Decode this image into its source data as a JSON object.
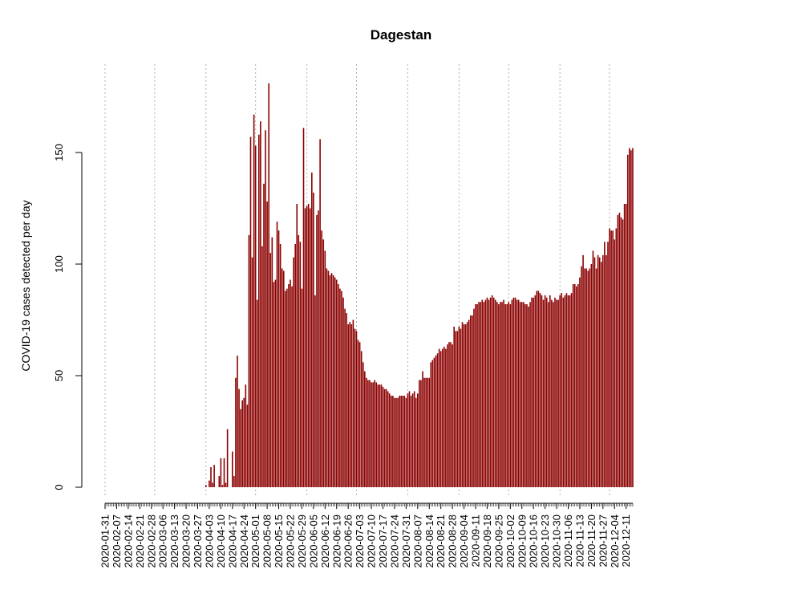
{
  "chart_data": {
    "type": "bar",
    "title": "Dagestan",
    "xlabel": "",
    "ylabel": "COVID-19 cases detected per day",
    "ylim": [
      0,
      180
    ],
    "y_ticks": [
      0,
      50,
      100,
      150
    ],
    "x_start": "2020-01-31",
    "x_tick_labels": [
      "2020-01-31",
      "2020-02-07",
      "2020-02-14",
      "2020-02-21",
      "2020-02-28",
      "2020-03-06",
      "2020-03-13",
      "2020-03-20",
      "2020-03-27",
      "2020-04-03",
      "2020-04-10",
      "2020-04-17",
      "2020-04-24",
      "2020-05-01",
      "2020-05-08",
      "2020-05-15",
      "2020-05-22",
      "2020-05-29",
      "2020-06-05",
      "2020-06-12",
      "2020-06-19",
      "2020-06-26",
      "2020-07-03",
      "2020-07-10",
      "2020-07-17",
      "2020-07-24",
      "2020-07-31",
      "2020-08-07",
      "2020-08-14",
      "2020-08-21",
      "2020-08-28",
      "2020-09-04",
      "2020-09-11",
      "2020-09-18",
      "2020-09-25",
      "2020-10-02",
      "2020-10-09",
      "2020-10-16",
      "2020-10-23",
      "2020-10-30",
      "2020-11-06",
      "2020-11-13",
      "2020-11-20",
      "2020-11-27",
      "2020-12-04",
      "2020-12-11"
    ],
    "gridlines": [
      "2020-01-31",
      "2020-03-01",
      "2020-04-01",
      "2020-05-01",
      "2020-06-01",
      "2020-07-01",
      "2020-08-01",
      "2020-09-01",
      "2020-10-01",
      "2020-11-01",
      "2020-12-01"
    ],
    "grid": "vertical dotted at month starts",
    "bar_color": "#8b0000",
    "values": [
      0,
      0,
      0,
      0,
      0,
      0,
      0,
      0,
      0,
      0,
      0,
      0,
      0,
      0,
      0,
      0,
      0,
      0,
      0,
      0,
      0,
      0,
      0,
      0,
      0,
      0,
      0,
      0,
      0,
      0,
      0,
      0,
      0,
      0,
      0,
      0,
      0,
      0,
      0,
      0,
      0,
      0,
      0,
      0,
      0,
      0,
      0,
      0,
      0,
      0,
      0,
      0,
      0,
      0,
      0,
      0,
      0,
      0,
      0,
      0,
      0,
      1,
      0,
      3,
      9,
      2,
      10,
      0,
      0,
      5,
      13,
      1,
      13,
      2,
      26,
      0,
      0,
      16,
      5,
      49,
      59,
      44,
      35,
      39,
      40,
      46,
      37,
      113,
      157,
      103,
      167,
      153,
      84,
      158,
      164,
      108,
      136,
      160,
      128,
      181,
      105,
      112,
      92,
      93,
      119,
      115,
      109,
      98,
      97,
      88,
      89,
      91,
      93,
      90,
      103,
      109,
      127,
      113,
      110,
      89,
      161,
      125,
      126,
      127,
      125,
      141,
      132,
      86,
      122,
      124,
      156,
      115,
      111,
      106,
      98,
      97,
      95,
      96,
      95,
      94,
      93,
      91,
      89,
      88,
      85,
      80,
      78,
      73,
      74,
      73,
      75,
      71,
      70,
      66,
      65,
      61,
      56,
      52,
      49,
      48,
      48,
      47,
      47,
      48,
      47,
      46,
      46,
      46,
      45,
      44,
      44,
      43,
      42,
      41,
      41,
      40,
      40,
      40,
      41,
      41,
      41,
      41,
      40,
      42,
      43,
      41,
      42,
      43,
      40,
      42,
      48,
      48,
      52,
      49,
      49,
      49,
      49,
      56,
      57,
      58,
      59,
      60,
      62,
      61,
      62,
      63,
      62,
      64,
      65,
      65,
      64,
      72,
      70,
      70,
      72,
      71,
      74,
      73,
      73,
      74,
      75,
      77,
      77,
      80,
      82,
      82,
      83,
      83,
      84,
      83,
      84,
      85,
      84,
      85,
      86,
      85,
      84,
      83,
      82,
      83,
      83,
      84,
      82,
      82,
      83,
      82,
      84,
      85,
      85,
      84,
      84,
      83,
      83,
      83,
      82,
      82,
      81,
      83,
      85,
      85,
      86,
      88,
      88,
      87,
      86,
      84,
      86,
      85,
      83,
      86,
      84,
      83,
      85,
      84,
      84,
      86,
      87,
      85,
      86,
      87,
      86,
      86,
      87,
      91,
      91,
      90,
      91,
      94,
      99,
      104,
      98,
      98,
      97,
      98,
      100,
      106,
      103,
      98,
      104,
      103,
      101,
      104,
      110,
      104,
      110,
      116,
      115,
      115,
      111,
      116,
      122,
      123,
      121,
      120,
      127,
      127,
      149,
      152,
      151,
      152
    ]
  }
}
